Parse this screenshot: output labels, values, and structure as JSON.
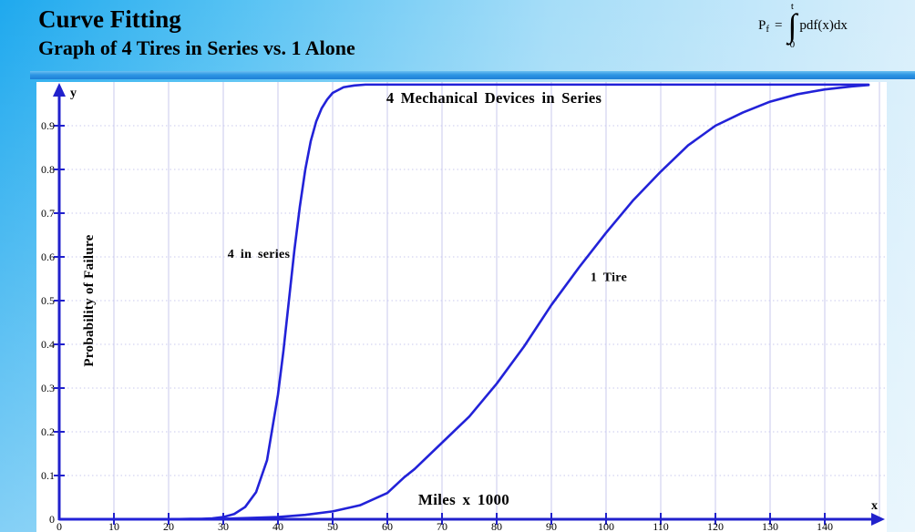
{
  "slide": {
    "title": "Curve Fitting",
    "subtitle": "Graph of 4 Tires in Series vs. 1 Alone",
    "formula": {
      "lhs_base": "P",
      "lhs_sub": "f",
      "equals": "=",
      "upper_limit": "t",
      "integral_sign": "∫",
      "lower_limit": "0",
      "integrand": "pdf(x)dx"
    }
  },
  "chart_data": {
    "type": "line",
    "title": "",
    "xlabel": "Miles x 1000",
    "ylabel": "Probability of Failure",
    "x_axis_letter": "x",
    "y_axis_letter": "y",
    "xlim": [
      0,
      150
    ],
    "ylim": [
      0,
      1
    ],
    "x_ticks": [
      0,
      10,
      20,
      30,
      40,
      50,
      60,
      70,
      80,
      90,
      100,
      110,
      120,
      130,
      140
    ],
    "y_ticks": [
      0,
      0.1,
      0.2,
      0.3,
      0.4,
      0.5,
      0.6,
      0.7,
      0.8,
      0.9
    ],
    "grid": {
      "x_lines": [
        10,
        20,
        30,
        40,
        50,
        60,
        70,
        80,
        90,
        100,
        110,
        120,
        130,
        140,
        150
      ],
      "y_lines": [
        0.1,
        0.2,
        0.3,
        0.4,
        0.5,
        0.6,
        0.7,
        0.8,
        0.9
      ],
      "x_style": "solid",
      "y_style": "dotted"
    },
    "legend": "none",
    "series": [
      {
        "name": "4 Mechanical Devices in Series",
        "x": [
          0,
          10,
          20,
          24,
          26,
          28,
          30,
          32,
          34,
          36,
          38,
          40,
          41,
          42,
          43,
          44,
          45,
          46,
          47,
          48,
          49,
          50,
          52,
          54,
          56,
          58,
          60,
          70,
          80,
          90,
          100,
          110,
          120,
          130,
          140,
          148
        ],
        "y": [
          0,
          0,
          0,
          0.001,
          0.001,
          0.002,
          0.005,
          0.012,
          0.028,
          0.062,
          0.135,
          0.285,
          0.385,
          0.5,
          0.615,
          0.715,
          0.8,
          0.865,
          0.91,
          0.94,
          0.96,
          0.975,
          0.988,
          0.992,
          0.994,
          0.994,
          0.994,
          0.994,
          0.994,
          0.994,
          0.994,
          0.994,
          0.994,
          0.994,
          0.994,
          0.994
        ]
      },
      {
        "name": "1 Tire",
        "x": [
          0,
          20,
          30,
          35,
          40,
          45,
          50,
          55,
          60,
          63,
          65,
          70,
          75,
          80,
          85,
          90,
          95,
          100,
          105,
          110,
          115,
          120,
          125,
          130,
          135,
          140,
          145,
          148
        ],
        "y": [
          0,
          0,
          0.001,
          0.003,
          0.005,
          0.01,
          0.018,
          0.032,
          0.06,
          0.095,
          0.115,
          0.175,
          0.235,
          0.31,
          0.395,
          0.49,
          0.575,
          0.655,
          0.73,
          0.795,
          0.855,
          0.9,
          0.93,
          0.955,
          0.972,
          0.983,
          0.99,
          0.993
        ]
      }
    ],
    "annotations": [
      {
        "text": "4 Mechanical Devices in Series",
        "x": 79.5,
        "y": 0.952,
        "size": 16.5,
        "anchor": "middle",
        "weight": "bold"
      },
      {
        "text": "4 in series",
        "x": 36.5,
        "y": 0.598,
        "size": 14,
        "anchor": "middle",
        "weight": "bold"
      },
      {
        "text": "1 Tire",
        "x": 100.5,
        "y": 0.545,
        "size": 14,
        "anchor": "middle",
        "weight": "bold"
      },
      {
        "text": "Miles x 1000",
        "x": 74,
        "y": 0.033,
        "size": 17,
        "anchor": "middle",
        "weight": "bold"
      }
    ],
    "colors": {
      "curve": "#2222d8",
      "axis": "#2121cc",
      "grid": "#c9c9ee",
      "plot_background": "#ffffff",
      "slide_background_left": "#1fa9ee",
      "slide_background_right": "#d9effb",
      "divider": "#1d7fd6",
      "text": "#000000"
    }
  }
}
